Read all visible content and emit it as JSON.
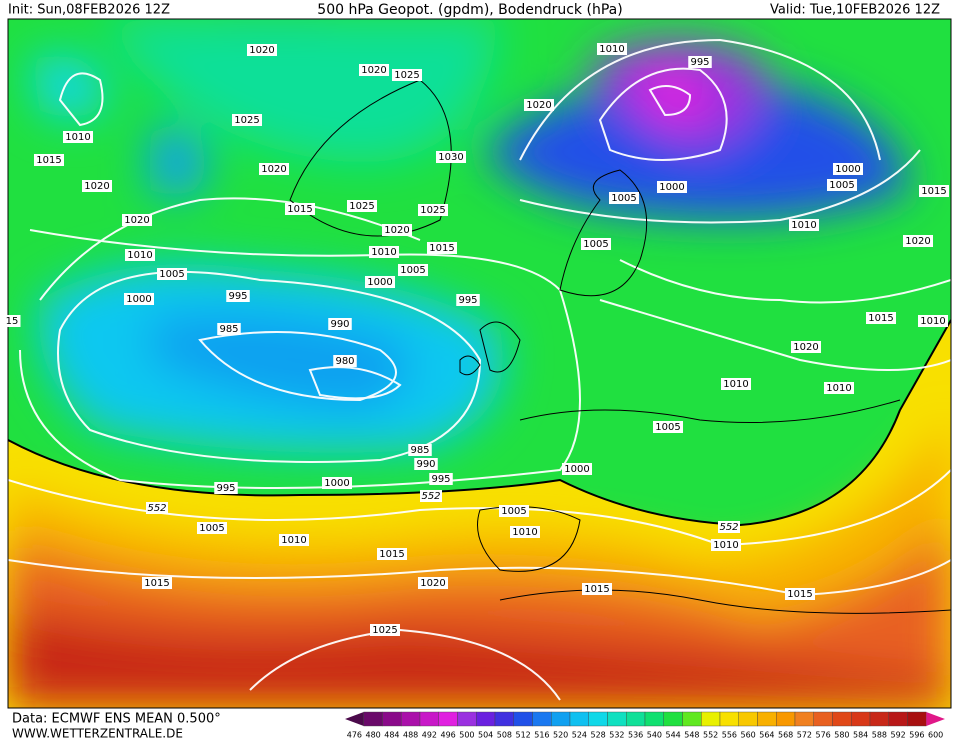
{
  "header": {
    "init": "Init: Sun,08FEB2026 12Z",
    "title": "500 hPa Geopot. (gpdm), Bodendruck (hPa)",
    "valid": "Valid: Tue,10FEB2026 12Z"
  },
  "footer": {
    "source": "Data: ECMWF ENS MEAN 0.500°",
    "site": "WWW.WETTERZENTRALE.DE"
  },
  "map": {
    "isobar_labels": [
      1020,
      1020,
      1025,
      1010,
      995,
      1020,
      1010,
      1025,
      1015,
      1020,
      1030,
      1000,
      1000,
      1005,
      1015,
      1020,
      1005,
      1015,
      1025,
      1025,
      1020,
      1020,
      1010,
      1005,
      1015,
      1020,
      1010,
      1010,
      1005,
      1005,
      1000,
      995,
      995,
      1000,
      15,
      990,
      985,
      1015,
      1010,
      1020,
      980,
      1010,
      1010,
      1005,
      985,
      990,
      995,
      1000,
      995,
      1000,
      1005,
      1010,
      1005,
      1010,
      1010,
      1015,
      1015,
      1020,
      1015,
      1015,
      1025
    ],
    "contour_labels": [
      552,
      552,
      552
    ]
  },
  "legend": {
    "labels": [
      476,
      480,
      484,
      488,
      492,
      496,
      500,
      504,
      508,
      512,
      516,
      520,
      524,
      528,
      532,
      536,
      540,
      544,
      548,
      552,
      556,
      560,
      564,
      568,
      572,
      576,
      580,
      584,
      588,
      592,
      596,
      600
    ],
    "colors": [
      "#4b0a4b",
      "#6a0a6a",
      "#8a0a8a",
      "#aa10aa",
      "#c818c8",
      "#e020e0",
      "#9a30e0",
      "#6a20e0",
      "#4030e0",
      "#2050e8",
      "#1a78f0",
      "#10a0f0",
      "#10c0f0",
      "#10d8e8",
      "#10e0c0",
      "#10e098",
      "#10e070",
      "#20e040",
      "#60e820",
      "#e8f000",
      "#f8e000",
      "#f8c800",
      "#f8b000",
      "#f89800",
      "#f08020",
      "#e86020",
      "#e04818",
      "#d83818",
      "#c82818",
      "#b81818",
      "#a81010",
      "#e01888"
    ]
  }
}
